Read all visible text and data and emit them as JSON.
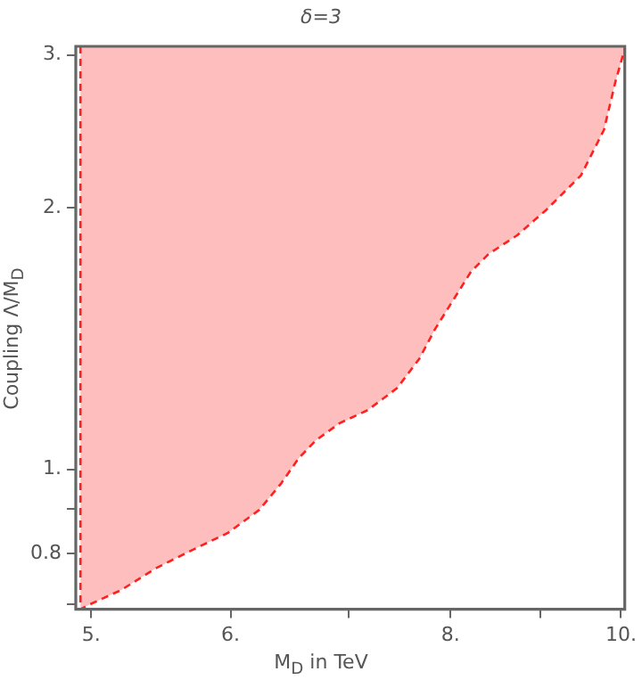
{
  "chart_data": {
    "type": "area",
    "title": "δ=3",
    "xlabel": "M$_{D}$ in TeV",
    "ylabel": "Coupling Λ/M$_{D}$",
    "log": "xy",
    "grid": false,
    "legend": false,
    "marker": "none",
    "line_style": "dashed",
    "xlim": [
      4.93,
      10.05
    ],
    "ylim": [
      0.69,
      3.07
    ],
    "xticks": [
      {
        "value": 5,
        "label": "5."
      },
      {
        "value": 6,
        "label": "6."
      },
      {
        "value": 7,
        "label": null
      },
      {
        "value": 8,
        "label": "8."
      },
      {
        "value": 9,
        "label": null
      },
      {
        "value": 10,
        "label": "10."
      }
    ],
    "yticks": [
      {
        "value": 0.7,
        "label": null
      },
      {
        "value": 0.8,
        "label": "0.8"
      },
      {
        "value": 0.9,
        "label": null
      },
      {
        "value": 1,
        "label": "1."
      },
      {
        "value": 2,
        "label": "2."
      },
      {
        "value": 3,
        "label": "3."
      }
    ],
    "series": [
      {
        "color": "#ff2020",
        "x": [
          4.93,
          4.93,
          5.0,
          5.2,
          5.44,
          5.69,
          5.98,
          6.23,
          6.41,
          6.56,
          6.71,
          6.92,
          7.18,
          7.46,
          7.68,
          7.84,
          8.22,
          8.41,
          8.73,
          9.07,
          9.49,
          9.78,
          9.93,
          10.05
        ],
        "values": [
          3.07,
          0.69,
          0.7,
          0.726,
          0.769,
          0.805,
          0.845,
          0.898,
          0.963,
          1.03,
          1.08,
          1.13,
          1.17,
          1.24,
          1.34,
          1.45,
          1.69,
          1.77,
          1.86,
          1.99,
          2.18,
          2.46,
          2.8,
          3.05
        ]
      }
    ]
  }
}
